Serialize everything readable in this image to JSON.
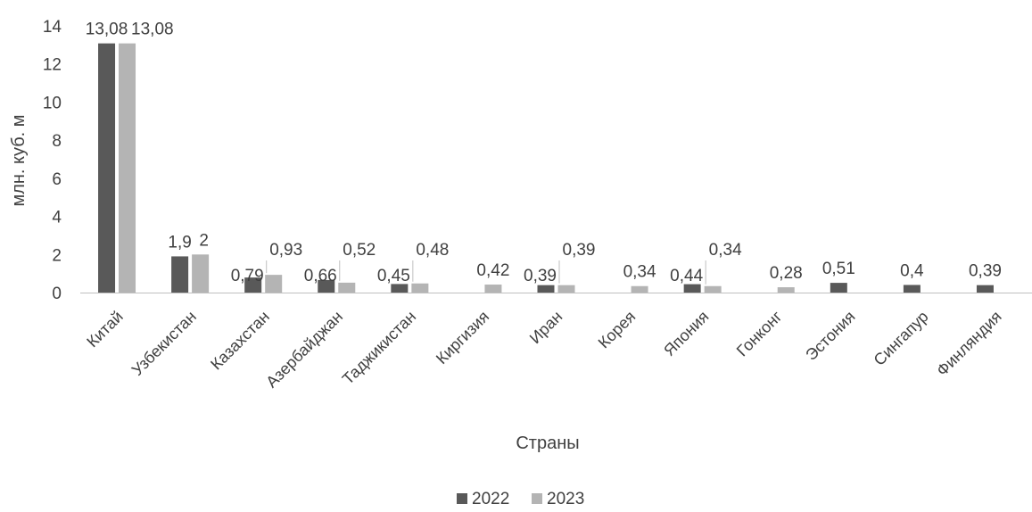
{
  "chart_data": {
    "type": "bar",
    "xlabel": "Страны",
    "ylabel": "млн. куб. м",
    "ylim": [
      0,
      14
    ],
    "yticks": [
      0,
      2,
      4,
      6,
      8,
      10,
      12,
      14
    ],
    "grid": false,
    "legend_position": "bottom",
    "categories": [
      "Китай",
      "Узбекистан",
      "Казахстан",
      "Азербайджан",
      "Таджикистан",
      "Киргизия",
      "Иран",
      "Корея",
      "Япония",
      "Гонконг",
      "Эстония",
      "Сингапур",
      "Финляндия"
    ],
    "series": [
      {
        "name": "2022",
        "color": "#595959",
        "values": [
          13.08,
          1.9,
          0.79,
          0.66,
          0.45,
          null,
          0.39,
          null,
          0.44,
          null,
          0.51,
          0.4,
          0.39
        ],
        "labels": [
          "13,08",
          "1,9",
          "0,79",
          "0,66",
          "0,45",
          "",
          "0,39",
          "",
          "0,44",
          "",
          "0,51",
          "0,4",
          "0,39"
        ]
      },
      {
        "name": "2023",
        "color": "#b4b4b4",
        "values": [
          13.08,
          2,
          0.93,
          0.52,
          0.48,
          0.42,
          0.39,
          0.34,
          0.34,
          0.28,
          null,
          null,
          null
        ],
        "labels": [
          "13,08",
          "2",
          "0,93",
          "0,52",
          "0,48",
          "0,42",
          "0,39",
          "0,34",
          "0,34",
          "0,28",
          "",
          "",
          ""
        ]
      }
    ]
  }
}
